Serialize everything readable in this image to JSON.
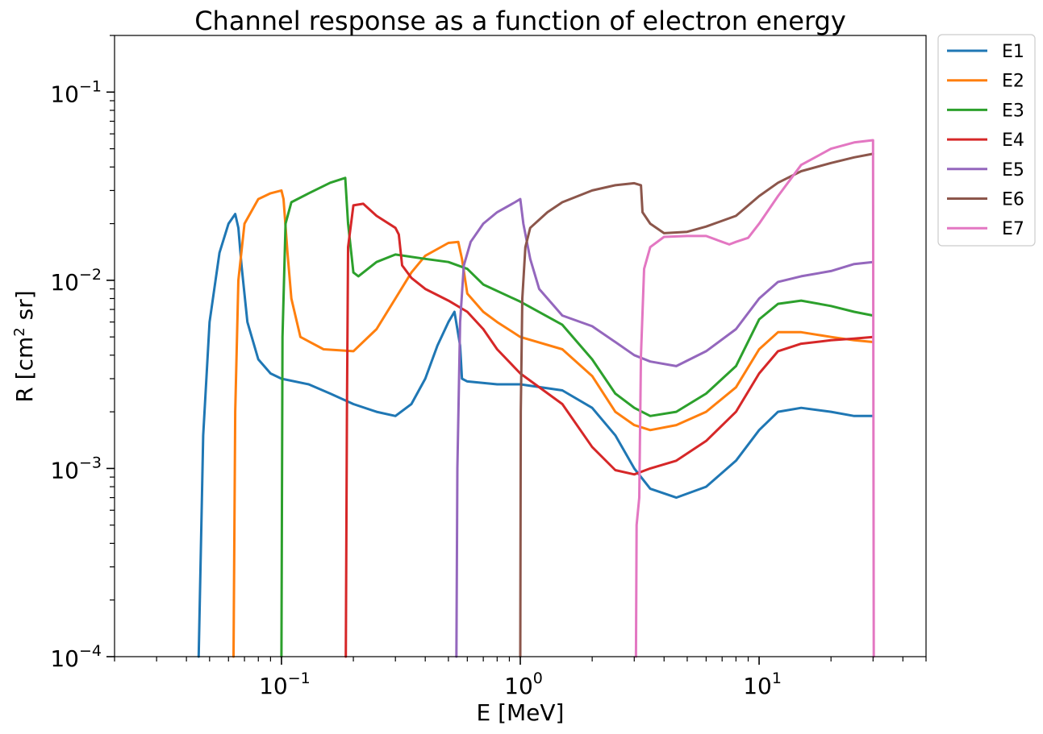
{
  "chart_data": {
    "type": "line",
    "title": "Channel response as a function of electron energy",
    "xlabel": "E [MeV]",
    "ylabel_main": "R [cm",
    "ylabel_sup": "2",
    "ylabel_tail": " sr]",
    "xscale": "log",
    "yscale": "log",
    "xlim": [
      0.02,
      50
    ],
    "ylim": [
      0.0001,
      0.2
    ],
    "xticks": [
      {
        "value": 0.1,
        "base": "10",
        "exp": "−1"
      },
      {
        "value": 1,
        "base": "10",
        "exp": "0"
      },
      {
        "value": 10,
        "base": "10",
        "exp": "1"
      }
    ],
    "yticks": [
      {
        "value": 0.0001,
        "base": "10",
        "exp": "−4"
      },
      {
        "value": 0.001,
        "base": "10",
        "exp": "−3"
      },
      {
        "value": 0.01,
        "base": "10",
        "exp": "−2"
      },
      {
        "value": 0.1,
        "base": "10",
        "exp": "−1"
      }
    ],
    "grid": false,
    "legend_position": "outside-top-right",
    "series": [
      {
        "name": "E1",
        "color": "#1f77b4",
        "points": [
          [
            0.045,
            0.0001
          ],
          [
            0.047,
            0.0015
          ],
          [
            0.05,
            0.006
          ],
          [
            0.055,
            0.014
          ],
          [
            0.06,
            0.02
          ],
          [
            0.064,
            0.0225
          ],
          [
            0.066,
            0.019
          ],
          [
            0.068,
            0.012
          ],
          [
            0.072,
            0.006
          ],
          [
            0.08,
            0.0038
          ],
          [
            0.09,
            0.0032
          ],
          [
            0.1,
            0.003
          ],
          [
            0.13,
            0.0028
          ],
          [
            0.16,
            0.0025
          ],
          [
            0.2,
            0.0022
          ],
          [
            0.25,
            0.002
          ],
          [
            0.3,
            0.0019
          ],
          [
            0.35,
            0.0022
          ],
          [
            0.4,
            0.003
          ],
          [
            0.45,
            0.0045
          ],
          [
            0.5,
            0.006
          ],
          [
            0.53,
            0.0068
          ],
          [
            0.56,
            0.0045
          ],
          [
            0.57,
            0.003
          ],
          [
            0.6,
            0.0029
          ],
          [
            0.8,
            0.0028
          ],
          [
            1.0,
            0.0028
          ],
          [
            1.5,
            0.0026
          ],
          [
            2.0,
            0.0021
          ],
          [
            2.5,
            0.0015
          ],
          [
            3.0,
            0.001
          ],
          [
            3.5,
            0.00078
          ],
          [
            4.5,
            0.0007
          ],
          [
            6,
            0.0008
          ],
          [
            8,
            0.0011
          ],
          [
            10,
            0.0016
          ],
          [
            12,
            0.002
          ],
          [
            15,
            0.0021
          ],
          [
            20,
            0.002
          ],
          [
            25,
            0.0019
          ],
          [
            30,
            0.0019
          ]
        ]
      },
      {
        "name": "E2",
        "color": "#ff7f0e",
        "points": [
          [
            0.063,
            0.0001
          ],
          [
            0.064,
            0.002
          ],
          [
            0.066,
            0.01
          ],
          [
            0.07,
            0.02
          ],
          [
            0.08,
            0.027
          ],
          [
            0.09,
            0.029
          ],
          [
            0.1,
            0.03
          ],
          [
            0.102,
            0.027
          ],
          [
            0.106,
            0.014
          ],
          [
            0.11,
            0.008
          ],
          [
            0.12,
            0.005
          ],
          [
            0.15,
            0.0043
          ],
          [
            0.2,
            0.0042
          ],
          [
            0.25,
            0.0055
          ],
          [
            0.3,
            0.008
          ],
          [
            0.35,
            0.011
          ],
          [
            0.4,
            0.0135
          ],
          [
            0.5,
            0.0158
          ],
          [
            0.55,
            0.016
          ],
          [
            0.57,
            0.013
          ],
          [
            0.6,
            0.0085
          ],
          [
            0.7,
            0.0068
          ],
          [
            0.8,
            0.006
          ],
          [
            1.0,
            0.005
          ],
          [
            1.5,
            0.0043
          ],
          [
            2.0,
            0.0031
          ],
          [
            2.5,
            0.002
          ],
          [
            3.0,
            0.0017
          ],
          [
            3.5,
            0.0016
          ],
          [
            4.5,
            0.0017
          ],
          [
            6,
            0.002
          ],
          [
            8,
            0.0027
          ],
          [
            10,
            0.0043
          ],
          [
            12,
            0.0053
          ],
          [
            15,
            0.0053
          ],
          [
            20,
            0.005
          ],
          [
            25,
            0.0048
          ],
          [
            30,
            0.0047
          ]
        ]
      },
      {
        "name": "E3",
        "color": "#2ca02c",
        "points": [
          [
            0.1,
            0.0001
          ],
          [
            0.101,
            0.005
          ],
          [
            0.104,
            0.02
          ],
          [
            0.11,
            0.026
          ],
          [
            0.13,
            0.029
          ],
          [
            0.16,
            0.033
          ],
          [
            0.185,
            0.035
          ],
          [
            0.19,
            0.02
          ],
          [
            0.2,
            0.011
          ],
          [
            0.21,
            0.0105
          ],
          [
            0.25,
            0.0125
          ],
          [
            0.3,
            0.0137
          ],
          [
            0.4,
            0.013
          ],
          [
            0.5,
            0.0125
          ],
          [
            0.6,
            0.0115
          ],
          [
            0.7,
            0.0095
          ],
          [
            1.0,
            0.0077
          ],
          [
            1.5,
            0.0058
          ],
          [
            2.0,
            0.0038
          ],
          [
            2.5,
            0.0025
          ],
          [
            3.0,
            0.0021
          ],
          [
            3.5,
            0.0019
          ],
          [
            4.5,
            0.002
          ],
          [
            6,
            0.0025
          ],
          [
            8,
            0.0035
          ],
          [
            10,
            0.0062
          ],
          [
            12,
            0.0075
          ],
          [
            15,
            0.0078
          ],
          [
            20,
            0.0073
          ],
          [
            25,
            0.0068
          ],
          [
            30,
            0.0065
          ]
        ]
      },
      {
        "name": "E4",
        "color": "#d62728",
        "points": [
          [
            0.186,
            0.0001
          ],
          [
            0.188,
            0.002
          ],
          [
            0.19,
            0.015
          ],
          [
            0.2,
            0.025
          ],
          [
            0.22,
            0.0255
          ],
          [
            0.25,
            0.022
          ],
          [
            0.3,
            0.019
          ],
          [
            0.31,
            0.0175
          ],
          [
            0.32,
            0.012
          ],
          [
            0.35,
            0.0103
          ],
          [
            0.4,
            0.009
          ],
          [
            0.5,
            0.0078
          ],
          [
            0.6,
            0.0068
          ],
          [
            0.7,
            0.0055
          ],
          [
            0.8,
            0.0043
          ],
          [
            1.0,
            0.0032
          ],
          [
            1.5,
            0.0022
          ],
          [
            2.0,
            0.0013
          ],
          [
            2.5,
            0.00098
          ],
          [
            3.0,
            0.00093
          ],
          [
            3.5,
            0.001
          ],
          [
            4.5,
            0.0011
          ],
          [
            6,
            0.0014
          ],
          [
            8,
            0.002
          ],
          [
            10,
            0.0032
          ],
          [
            12,
            0.0042
          ],
          [
            15,
            0.0046
          ],
          [
            20,
            0.0048
          ],
          [
            25,
            0.0049
          ],
          [
            30,
            0.005
          ]
        ]
      },
      {
        "name": "E5",
        "color": "#9467bd",
        "points": [
          [
            0.54,
            0.0001
          ],
          [
            0.545,
            0.001
          ],
          [
            0.56,
            0.006
          ],
          [
            0.58,
            0.012
          ],
          [
            0.62,
            0.016
          ],
          [
            0.7,
            0.02
          ],
          [
            0.8,
            0.023
          ],
          [
            0.95,
            0.026
          ],
          [
            1.0,
            0.027
          ],
          [
            1.03,
            0.02
          ],
          [
            1.1,
            0.013
          ],
          [
            1.2,
            0.009
          ],
          [
            1.5,
            0.0065
          ],
          [
            2.0,
            0.0057
          ],
          [
            2.5,
            0.0047
          ],
          [
            3.0,
            0.004
          ],
          [
            3.5,
            0.0037
          ],
          [
            4.5,
            0.0035
          ],
          [
            6,
            0.0042
          ],
          [
            8,
            0.0055
          ],
          [
            10,
            0.008
          ],
          [
            12,
            0.0098
          ],
          [
            15,
            0.0105
          ],
          [
            20,
            0.0112
          ],
          [
            25,
            0.0122
          ],
          [
            30,
            0.0125
          ]
        ]
      },
      {
        "name": "E6",
        "color": "#8c564b",
        "points": [
          [
            1.0,
            0.0001
          ],
          [
            1.005,
            0.002
          ],
          [
            1.02,
            0.008
          ],
          [
            1.05,
            0.015
          ],
          [
            1.1,
            0.019
          ],
          [
            1.3,
            0.023
          ],
          [
            1.5,
            0.026
          ],
          [
            2.0,
            0.03
          ],
          [
            2.5,
            0.032
          ],
          [
            3.0,
            0.0328
          ],
          [
            3.2,
            0.032
          ],
          [
            3.25,
            0.023
          ],
          [
            3.5,
            0.02
          ],
          [
            4.0,
            0.0178
          ],
          [
            5,
            0.0181
          ],
          [
            6,
            0.0193
          ],
          [
            8,
            0.022
          ],
          [
            10,
            0.028
          ],
          [
            12,
            0.033
          ],
          [
            15,
            0.038
          ],
          [
            20,
            0.042
          ],
          [
            25,
            0.045
          ],
          [
            30,
            0.047
          ]
        ]
      },
      {
        "name": "E7",
        "color": "#e377c2",
        "points": [
          [
            3.05,
            0.0001
          ],
          [
            3.07,
            0.0005
          ],
          [
            3.15,
            0.0007
          ],
          [
            3.2,
            0.004
          ],
          [
            3.3,
            0.0115
          ],
          [
            3.5,
            0.015
          ],
          [
            4.0,
            0.017
          ],
          [
            5,
            0.0172
          ],
          [
            6,
            0.0172
          ],
          [
            7,
            0.016
          ],
          [
            7.5,
            0.0155
          ],
          [
            8,
            0.016
          ],
          [
            9,
            0.0168
          ],
          [
            10,
            0.02
          ],
          [
            12,
            0.028
          ],
          [
            15,
            0.041
          ],
          [
            20,
            0.05
          ],
          [
            25,
            0.054
          ],
          [
            30,
            0.0555
          ],
          [
            30.2,
            0.0001
          ]
        ]
      }
    ]
  }
}
